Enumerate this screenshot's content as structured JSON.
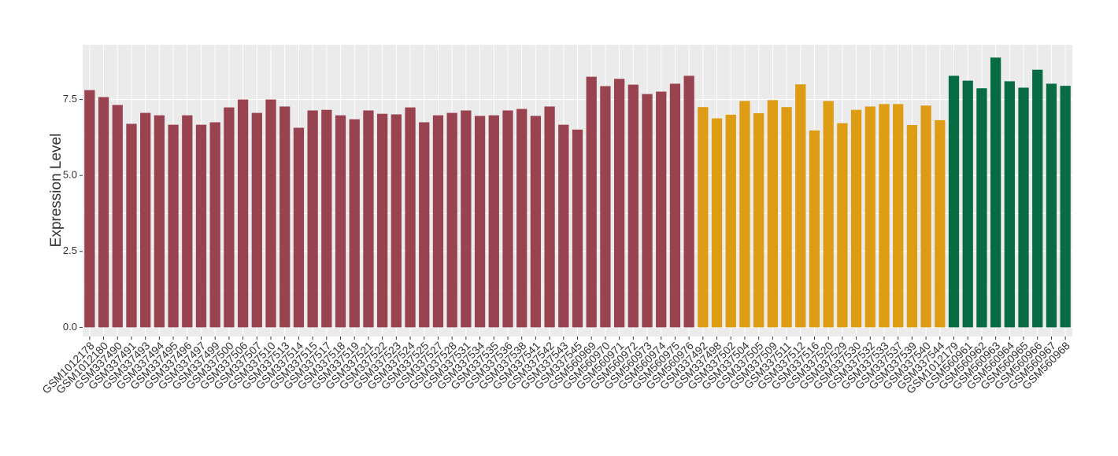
{
  "chart_data": {
    "type": "bar",
    "y_label": "Expression Level",
    "categories": [
      "GSM1012178",
      "GSM1012180",
      "GSM337490",
      "GSM337491",
      "GSM337493",
      "GSM337494",
      "GSM337495",
      "GSM337496",
      "GSM337497",
      "GSM337499",
      "GSM337500",
      "GSM337506",
      "GSM337507",
      "GSM337510",
      "GSM337513",
      "GSM337514",
      "GSM337515",
      "GSM337517",
      "GSM337518",
      "GSM337519",
      "GSM337521",
      "GSM337522",
      "GSM337523",
      "GSM337524",
      "GSM337525",
      "GSM337527",
      "GSM337528",
      "GSM337531",
      "GSM337534",
      "GSM337535",
      "GSM337536",
      "GSM337538",
      "GSM337541",
      "GSM337542",
      "GSM337543",
      "GSM337545",
      "GSM560969",
      "GSM560970",
      "GSM560971",
      "GSM560972",
      "GSM560973",
      "GSM560974",
      "GSM560975",
      "GSM560976",
      "GSM337492",
      "GSM337498",
      "GSM337502",
      "GSM337504",
      "GSM337505",
      "GSM337509",
      "GSM337511",
      "GSM337512",
      "GSM337516",
      "GSM337520",
      "GSM337529",
      "GSM337530",
      "GSM337532",
      "GSM337533",
      "GSM337537",
      "GSM337539",
      "GSM337540",
      "GSM337544",
      "GSM1012179",
      "GSM560961",
      "GSM560962",
      "GSM560963",
      "GSM560964",
      "GSM560965",
      "GSM560966",
      "GSM560967",
      "GSM560968"
    ],
    "values": [
      7.81,
      7.58,
      7.32,
      6.7,
      7.06,
      6.98,
      6.67,
      6.98,
      6.67,
      6.75,
      7.24,
      7.5,
      7.06,
      7.5,
      7.27,
      6.57,
      7.14,
      7.16,
      6.98,
      6.85,
      7.14,
      7.03,
      7.01,
      7.24,
      6.75,
      6.98,
      7.06,
      7.14,
      6.96,
      6.98,
      7.14,
      7.19,
      6.96,
      7.27,
      6.67,
      6.51,
      8.25,
      7.94,
      8.18,
      7.99,
      7.68,
      7.76,
      8.02,
      8.28,
      7.25,
      6.88,
      7.0,
      7.45,
      7.05,
      7.48,
      7.25,
      8.0,
      6.48,
      7.45,
      6.72,
      7.16,
      7.27,
      7.35,
      7.35,
      6.66,
      7.3,
      6.82,
      8.28,
      8.12,
      7.87,
      8.88,
      8.1,
      7.89,
      8.48,
      8.02,
      7.95
    ],
    "colors": [
      "#9A4350",
      "#9A4350",
      "#9A4350",
      "#9A4350",
      "#9A4350",
      "#9A4350",
      "#9A4350",
      "#9A4350",
      "#9A4350",
      "#9A4350",
      "#9A4350",
      "#9A4350",
      "#9A4350",
      "#9A4350",
      "#9A4350",
      "#9A4350",
      "#9A4350",
      "#9A4350",
      "#9A4350",
      "#9A4350",
      "#9A4350",
      "#9A4350",
      "#9A4350",
      "#9A4350",
      "#9A4350",
      "#9A4350",
      "#9A4350",
      "#9A4350",
      "#9A4350",
      "#9A4350",
      "#9A4350",
      "#9A4350",
      "#9A4350",
      "#9A4350",
      "#9A4350",
      "#9A4350",
      "#9A4350",
      "#9A4350",
      "#9A4350",
      "#9A4350",
      "#9A4350",
      "#9A4350",
      "#9A4350",
      "#9A4350",
      "#DE9B14",
      "#DE9B14",
      "#DE9B14",
      "#DE9B14",
      "#DE9B14",
      "#DE9B14",
      "#DE9B14",
      "#DE9B14",
      "#DE9B14",
      "#DE9B14",
      "#DE9B14",
      "#DE9B14",
      "#DE9B14",
      "#DE9B14",
      "#DE9B14",
      "#DE9B14",
      "#DE9B14",
      "#DE9B14",
      "#076B44",
      "#076B44",
      "#076B44",
      "#076B44",
      "#076B44",
      "#076B44",
      "#076B44",
      "#076B44",
      "#076B44"
    ],
    "ylim": [
      -0.3,
      9.3
    ],
    "yticks": [
      {
        "value": 0,
        "label": "0.0"
      },
      2.5,
      {
        "value": 5,
        "label": "5.0"
      },
      7.5
    ],
    "grid": true
  }
}
